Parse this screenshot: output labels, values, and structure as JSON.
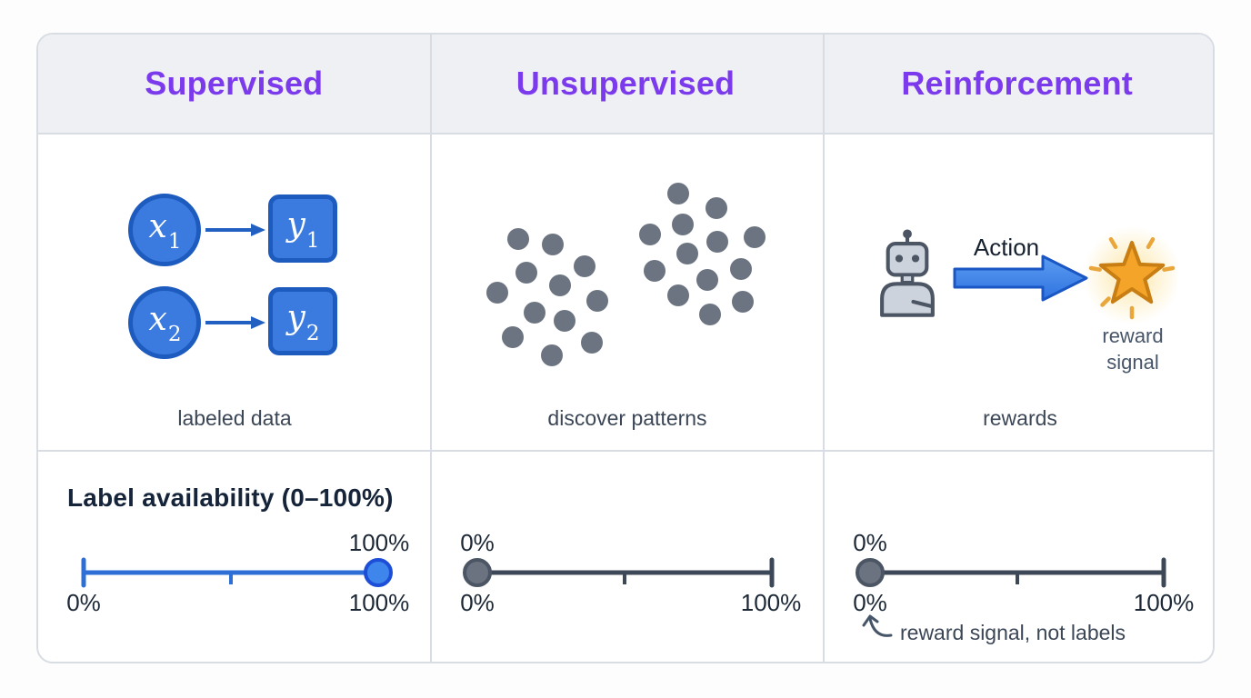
{
  "columns": [
    {
      "header": "Supervised",
      "caption": "labeled data"
    },
    {
      "header": "Unsupervised",
      "caption": "discover patterns"
    },
    {
      "header": "Reinforcement",
      "caption": "rewards"
    }
  ],
  "supervised": {
    "pairs": [
      {
        "input": {
          "base": "x",
          "sub": "1"
        },
        "output": {
          "base": "y",
          "sub": "1"
        }
      },
      {
        "input": {
          "base": "x",
          "sub": "2"
        },
        "output": {
          "base": "y",
          "sub": "2"
        }
      }
    ]
  },
  "unsupervised": {
    "dot_radius": 12,
    "dot_color": "#6b7480",
    "clusters": [
      {
        "dots": [
          [
            96,
            115
          ],
          [
            134,
            121
          ],
          [
            169,
            145
          ],
          [
            105,
            152
          ],
          [
            142,
            166
          ],
          [
            73,
            174
          ],
          [
            183,
            183
          ],
          [
            114,
            196
          ],
          [
            147,
            205
          ],
          [
            90,
            223
          ],
          [
            177,
            229
          ],
          [
            133,
            243
          ]
        ]
      },
      {
        "dots": [
          [
            272,
            65
          ],
          [
            314,
            81
          ],
          [
            277,
            99
          ],
          [
            241,
            110
          ],
          [
            356,
            113
          ],
          [
            315,
            118
          ],
          [
            282,
            131
          ],
          [
            246,
            150
          ],
          [
            341,
            148
          ],
          [
            304,
            160
          ],
          [
            272,
            177
          ],
          [
            343,
            184
          ],
          [
            307,
            198
          ]
        ]
      }
    ]
  },
  "reinforcement": {
    "action_label": "Action",
    "reward_caption": "reward\nsignal"
  },
  "label_availability": {
    "heading": "Label availability (0–100%)",
    "sliders": [
      {
        "name": "supervised",
        "value": 100,
        "value_label": "100%",
        "min_label": "0%",
        "max_label": "100%"
      },
      {
        "name": "unsupervised",
        "value": 0,
        "value_label": "0%",
        "min_label": "0%",
        "max_label": "100%"
      },
      {
        "name": "reinforcement",
        "value": 0,
        "value_label": "0%",
        "min_label": "0%",
        "max_label": "100%",
        "annotation": "reward signal, not labels"
      }
    ]
  },
  "colors": {
    "header_text": "#7c3aed",
    "header_bg": "#eef0f4",
    "border": "#d8dce3",
    "node_fill": "#3b7bdf",
    "node_border": "#1e5bbf",
    "arrow_blue": "#2160c0",
    "dot_gray": "#6b7480",
    "slider_blue": "#2e6fd6",
    "knob_blue_fill": "#3f86ec",
    "knob_blue_border": "#1d4ed8",
    "slider_dark": "#3c4758",
    "knob_gray_fill": "#6b7280",
    "knob_gray_border": "#4b5563",
    "star_fill": "#f4a529",
    "star_stroke": "#c87e12",
    "robot_fill": "#cdd3dc",
    "robot_stroke": "#4b5563",
    "caption_text": "#3b4656"
  }
}
